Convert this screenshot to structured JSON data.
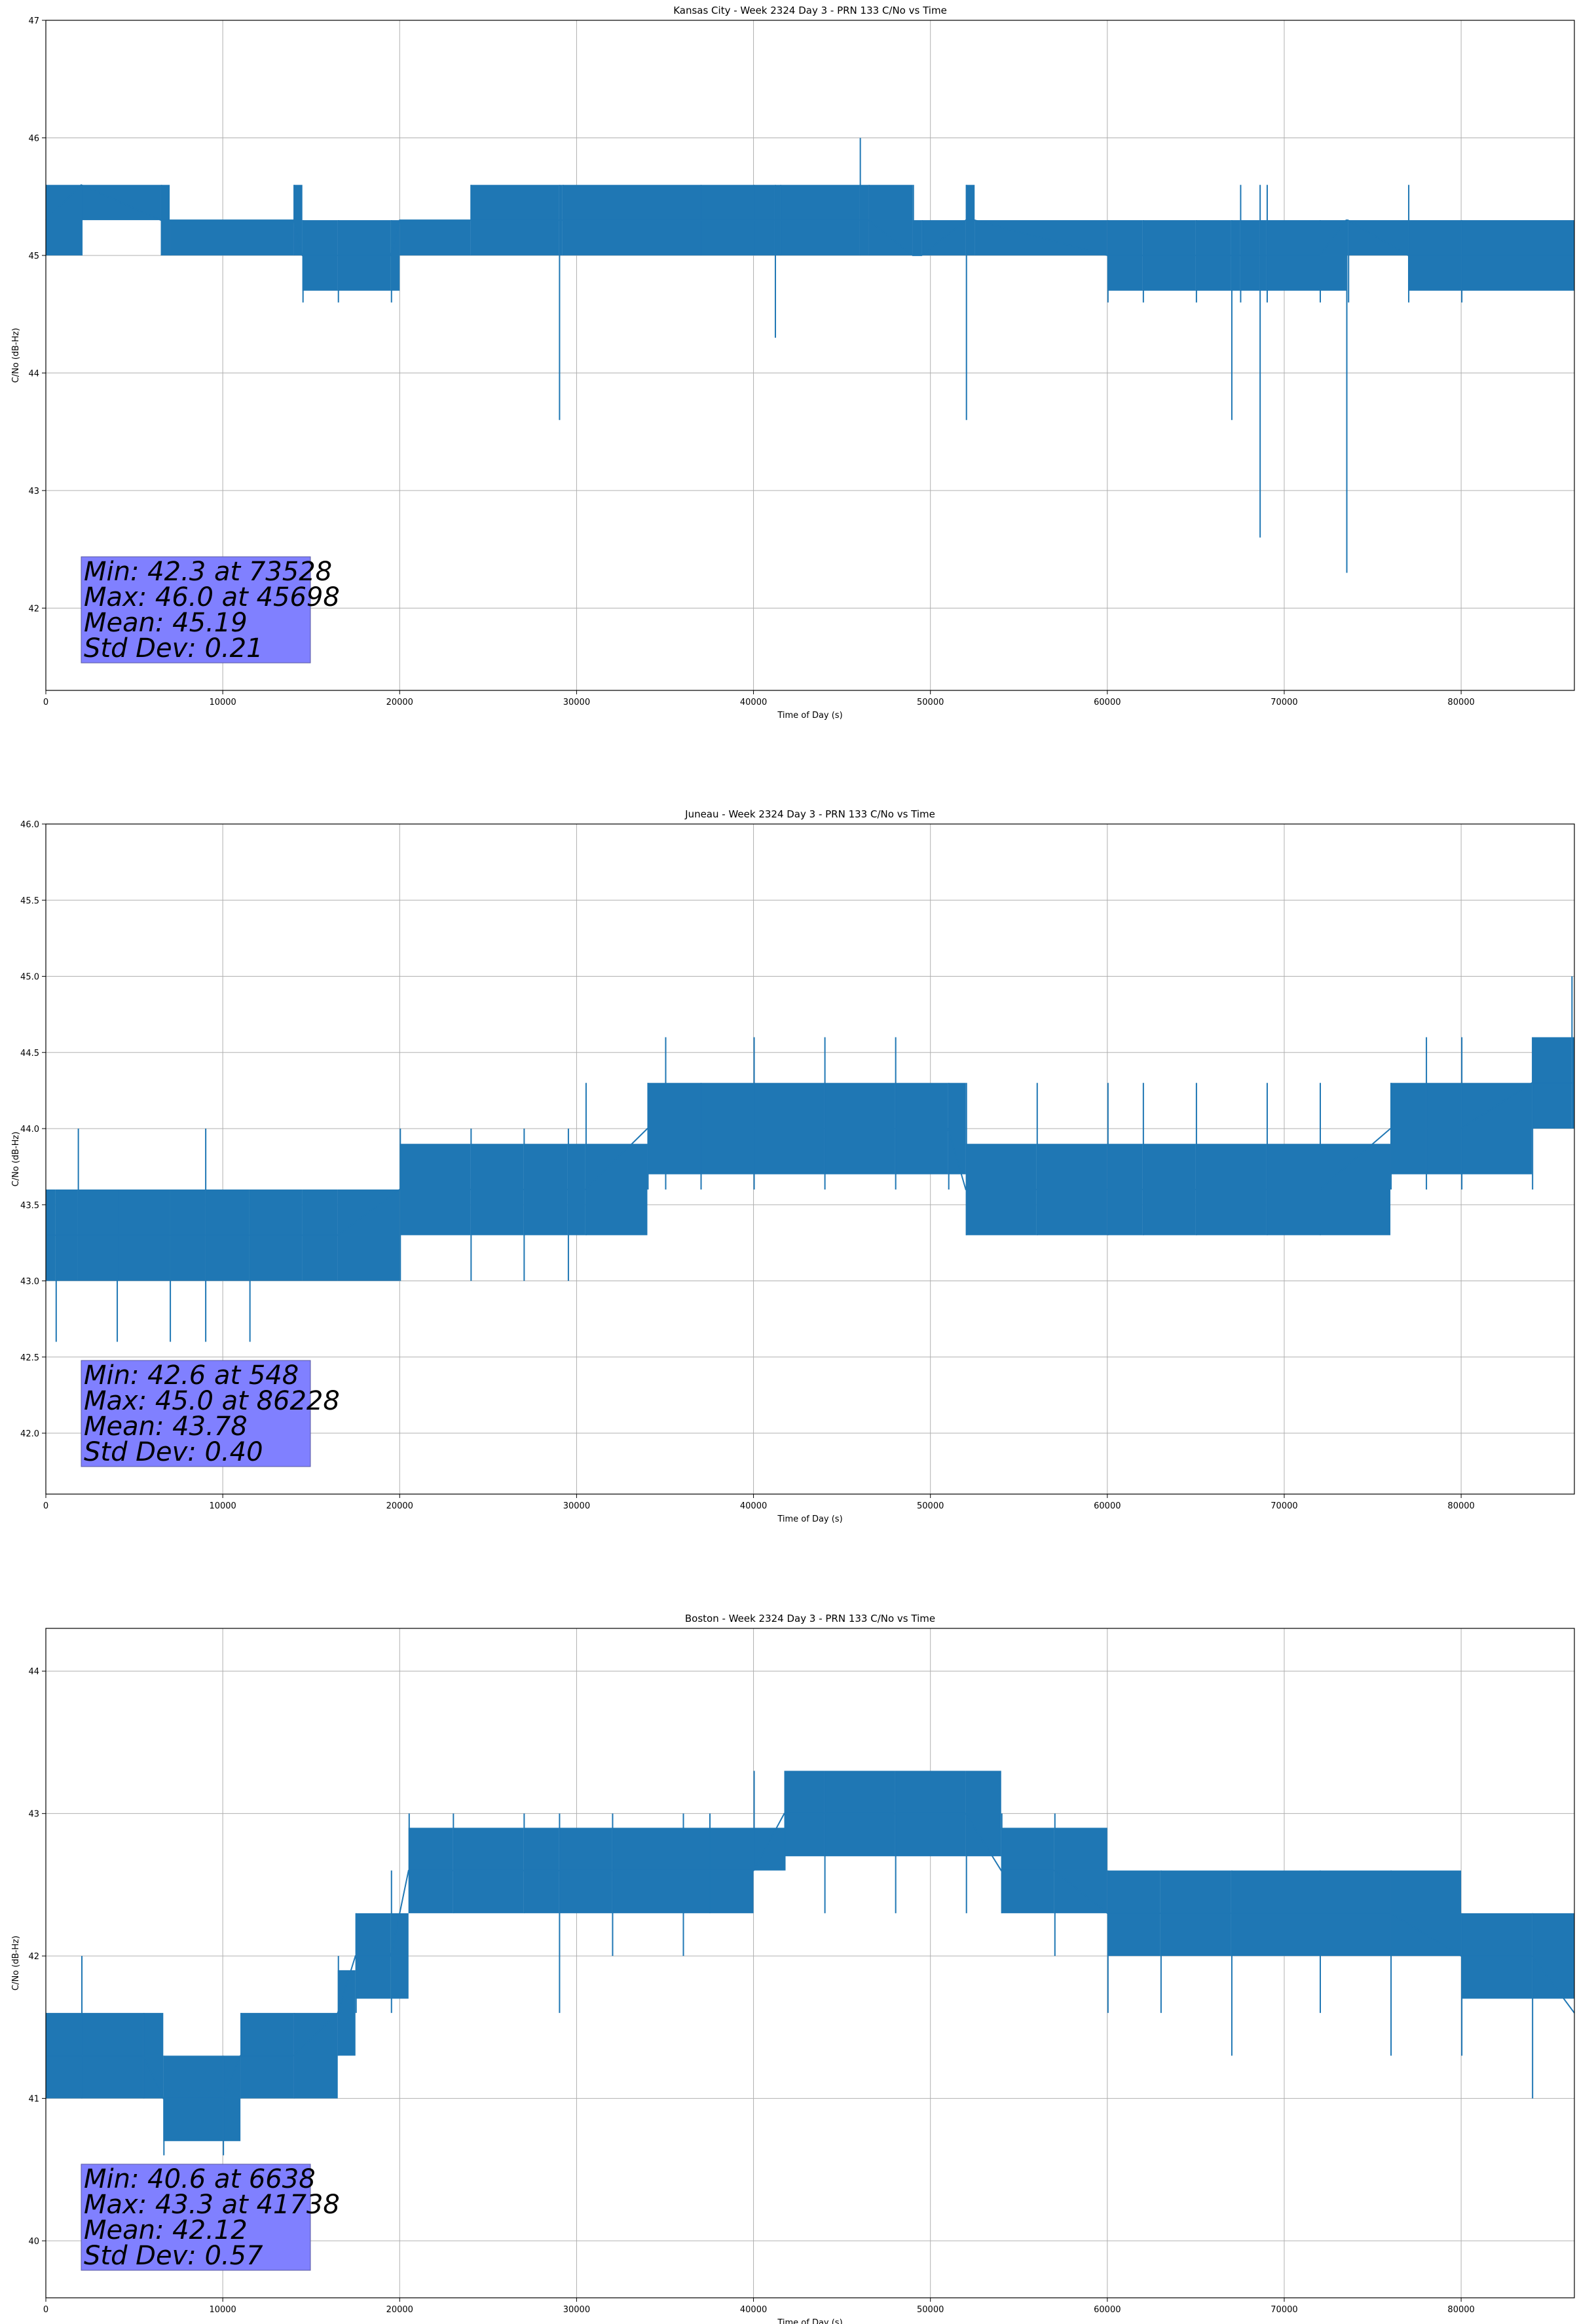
{
  "chart_data": [
    {
      "type": "line",
      "title": "Kansas City - Week 2324 Day 3 - PRN 133 C/No vs Time",
      "xlabel": "Time of Day (s)",
      "ylabel": "C/No (dB-Hz)",
      "xlim": [
        0,
        86400
      ],
      "ylim": [
        41.3,
        47.0
      ],
      "xticks": [
        0,
        10000,
        20000,
        30000,
        40000,
        50000,
        60000,
        70000,
        80000
      ],
      "xtick_labels": [
        "0",
        "10000",
        "20000",
        "30000",
        "40000",
        "50000",
        "60000",
        "70000",
        "80000"
      ],
      "yticks": [
        42,
        43,
        44,
        45,
        46,
        47
      ],
      "ytick_labels": [
        "42",
        "43",
        "44",
        "45",
        "46",
        "47"
      ],
      "grid": true,
      "line_color": "#1f77b4",
      "stats_box_color": "#8080ff",
      "stats": [
        "Min: 42.3 at 73528",
        "Max: 46.0 at 45698",
        "Mean: 45.19",
        "Std Dev: 0.21"
      ],
      "series": [
        {
          "x": [
            0,
            2000,
            6500,
            7000,
            14000,
            14500,
            16500,
            19500,
            20000,
            24000,
            29000,
            29200,
            37000,
            40000,
            41200,
            41500,
            46000,
            46500,
            49000,
            49500,
            52000,
            52500,
            60000,
            62000,
            65000,
            67000,
            67500,
            68600,
            69000,
            72000,
            73500,
            73600,
            77000,
            80000,
            86400
          ],
          "y": [
            45.3,
            45.6,
            45.3,
            45.3,
            45.3,
            45.0,
            45.0,
            45.0,
            45.3,
            45.3,
            45.3,
            45.3,
            45.3,
            45.3,
            45.3,
            45.3,
            45.3,
            45.3,
            45.0,
            45.0,
            45.3,
            45.3,
            45.0,
            45.0,
            45.0,
            45.0,
            45.0,
            45.0,
            45.0,
            45.0,
            45.3,
            45.3,
            45.0,
            45.0,
            45.0
          ],
          "ymin": [
            45.0,
            45.0,
            45.0,
            45.0,
            45.0,
            44.6,
            44.6,
            44.6,
            45.0,
            45.0,
            43.6,
            45.0,
            45.0,
            45.0,
            44.3,
            45.0,
            45.0,
            45.0,
            45.0,
            45.0,
            43.6,
            45.0,
            44.6,
            44.6,
            44.6,
            43.6,
            44.6,
            42.6,
            44.6,
            44.6,
            42.3,
            44.6,
            44.6,
            44.6,
            45.0
          ],
          "ymax": [
            45.6,
            45.6,
            45.6,
            45.3,
            45.6,
            45.3,
            45.3,
            45.3,
            45.3,
            45.6,
            45.6,
            45.6,
            45.6,
            45.6,
            45.6,
            45.6,
            46.0,
            45.6,
            45.6,
            45.3,
            45.6,
            45.3,
            45.3,
            45.3,
            45.3,
            45.3,
            45.6,
            45.6,
            45.6,
            45.3,
            45.3,
            45.3,
            45.6,
            45.3,
            45.3
          ]
        }
      ]
    },
    {
      "type": "line",
      "title": "Juneau - Week 2324 Day 3 - PRN 133 C/No vs Time",
      "xlabel": "Time of Day (s)",
      "ylabel": "C/No (dB-Hz)",
      "xlim": [
        0,
        86400
      ],
      "ylim": [
        41.6,
        46.0
      ],
      "xticks": [
        0,
        10000,
        20000,
        30000,
        40000,
        50000,
        60000,
        70000,
        80000
      ],
      "xtick_labels": [
        "0",
        "10000",
        "20000",
        "30000",
        "40000",
        "50000",
        "60000",
        "70000",
        "80000"
      ],
      "yticks": [
        42.0,
        42.5,
        43.0,
        43.5,
        44.0,
        44.5,
        45.0,
        45.5,
        46.0
      ],
      "ytick_labels": [
        "42.0",
        "42.5",
        "43.0",
        "43.5",
        "44.0",
        "44.5",
        "45.0",
        "45.5",
        "46.0"
      ],
      "grid": true,
      "line_color": "#1f77b4",
      "stats_box_color": "#8080ff",
      "stats": [
        "Min: 42.6 at 548",
        "Max: 45.0 at 86228",
        "Mean: 43.78",
        "Std Dev: 0.40"
      ],
      "series": [
        {
          "x": [
            0,
            548,
            1800,
            4000,
            7000,
            9000,
            11500,
            14500,
            16500,
            20000,
            24000,
            27000,
            29500,
            30500,
            34000,
            35000,
            37000,
            40000,
            44000,
            48000,
            51000,
            52000,
            56000,
            60000,
            62000,
            65000,
            69000,
            72000,
            76000,
            78000,
            80000,
            84000,
            86228,
            86400
          ],
          "y": [
            43.3,
            43.3,
            43.3,
            43.3,
            43.3,
            43.3,
            43.3,
            43.3,
            43.3,
            43.6,
            43.6,
            43.6,
            43.6,
            43.6,
            44.0,
            44.0,
            44.0,
            44.0,
            44.0,
            44.0,
            44.0,
            43.6,
            43.6,
            43.6,
            43.6,
            43.6,
            43.6,
            43.6,
            44.0,
            44.0,
            44.0,
            44.3,
            44.3,
            44.3
          ],
          "ymin": [
            43.0,
            42.6,
            43.0,
            42.6,
            42.6,
            42.6,
            42.6,
            43.0,
            43.0,
            43.0,
            43.0,
            43.0,
            43.0,
            43.3,
            43.6,
            43.6,
            43.6,
            43.6,
            43.6,
            43.6,
            43.6,
            43.3,
            43.3,
            43.3,
            43.3,
            43.3,
            43.3,
            43.3,
            43.6,
            43.6,
            43.6,
            43.6,
            44.0,
            44.0
          ],
          "ymax": [
            43.6,
            43.6,
            44.0,
            43.6,
            43.6,
            44.0,
            43.6,
            43.6,
            43.6,
            44.0,
            44.0,
            44.0,
            44.0,
            44.3,
            44.3,
            44.6,
            44.3,
            44.6,
            44.6,
            44.6,
            44.3,
            44.3,
            44.3,
            44.3,
            44.3,
            44.3,
            44.3,
            44.3,
            44.3,
            44.6,
            44.6,
            44.6,
            45.0,
            44.6
          ]
        }
      ]
    },
    {
      "type": "line",
      "title": "Boston - Week 2324 Day 3 - PRN 133 C/No vs Time",
      "xlabel": "Time of Day (s)",
      "ylabel": "C/No (dB-Hz)",
      "xlim": [
        0,
        86400
      ],
      "ylim": [
        39.6,
        44.3
      ],
      "xticks": [
        0,
        10000,
        20000,
        30000,
        40000,
        50000,
        60000,
        70000,
        80000
      ],
      "xtick_labels": [
        "0",
        "10000",
        "20000",
        "30000",
        "40000",
        "50000",
        "60000",
        "70000",
        "80000"
      ],
      "yticks": [
        40,
        41,
        42,
        43,
        44
      ],
      "ytick_labels": [
        "40",
        "41",
        "42",
        "43",
        "44"
      ],
      "grid": true,
      "line_color": "#1f77b4",
      "stats_box_color": "#8080ff",
      "stats": [
        "Min: 40.6 at 6638",
        "Max: 43.3 at 41738",
        "Mean: 42.12",
        "Std Dev: 0.57"
      ],
      "series": [
        {
          "x": [
            0,
            2000,
            5500,
            6638,
            10000,
            11000,
            14000,
            16500,
            17500,
            19500,
            20500,
            23000,
            27000,
            29000,
            32000,
            36000,
            37500,
            40000,
            41738,
            44000,
            48000,
            52000,
            54000,
            57000,
            60000,
            63000,
            67000,
            72000,
            76000,
            80000,
            84000,
            86400
          ],
          "y": [
            41.3,
            41.3,
            41.3,
            41.0,
            41.0,
            41.3,
            41.3,
            41.6,
            42.0,
            42.0,
            42.6,
            42.6,
            42.6,
            42.6,
            42.6,
            42.6,
            42.6,
            42.6,
            43.0,
            43.0,
            43.0,
            43.0,
            42.6,
            42.6,
            42.3,
            42.3,
            42.3,
            42.3,
            42.3,
            42.0,
            42.0,
            41.6
          ],
          "ymin": [
            41.0,
            41.0,
            41.0,
            40.6,
            40.6,
            41.0,
            41.0,
            41.3,
            41.6,
            41.6,
            42.3,
            42.3,
            42.3,
            41.6,
            42.0,
            42.0,
            42.3,
            42.6,
            42.6,
            42.3,
            42.3,
            42.3,
            42.3,
            42.0,
            41.6,
            41.6,
            41.3,
            41.6,
            41.3,
            41.3,
            41.0,
            41.3
          ],
          "ymax": [
            41.6,
            42.0,
            41.6,
            41.3,
            41.3,
            41.6,
            41.6,
            42.0,
            42.3,
            42.6,
            43.0,
            43.0,
            43.0,
            43.0,
            43.0,
            43.0,
            43.0,
            43.3,
            43.3,
            43.3,
            43.3,
            43.3,
            43.0,
            43.0,
            42.6,
            42.6,
            42.6,
            42.6,
            42.6,
            42.3,
            42.3,
            42.0
          ]
        }
      ]
    }
  ]
}
